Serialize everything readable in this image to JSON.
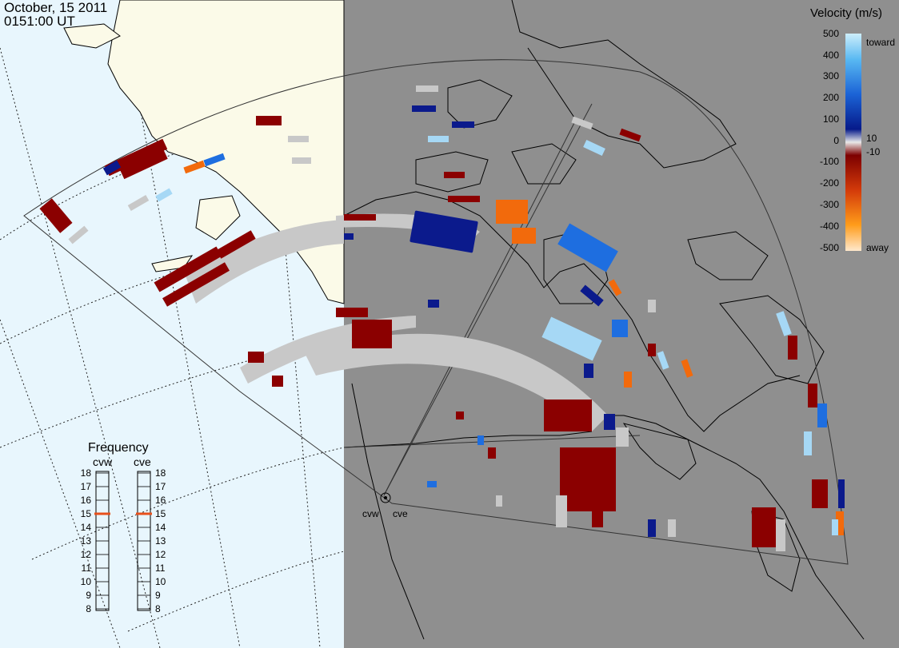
{
  "header": {
    "date": "October, 15 2011",
    "time": "0151:00 UT"
  },
  "radars": [
    {
      "code": "cvw"
    },
    {
      "code": "cve"
    }
  ],
  "velocity_scale": {
    "title": "Velocity (m/s)",
    "ticks": [
      "500",
      "400",
      "300",
      "200",
      "100",
      "10",
      "0",
      "-10",
      "-100",
      "-200",
      "-300",
      "-400",
      "-500"
    ],
    "toward_label": "toward",
    "away_label": "away"
  },
  "frequency_panel": {
    "title": "Frequency",
    "left_label": "cvw",
    "right_label": "cve",
    "levels": [
      "18",
      "17",
      "16",
      "15",
      "14",
      "13",
      "12",
      "11",
      "10",
      "9",
      "8"
    ],
    "cvw_value": 15,
    "cve_value": 15,
    "marker_color": "#e8501c"
  },
  "colors": {
    "ocean": "#e8f6fd",
    "night_side": "#8f8f8f",
    "land": "#fbfae8",
    "ground_scatter": "#c8c8c8",
    "away_strong": "#8b0000",
    "away_orange": "#f26a0c",
    "toward_strong": "#0b1a8c",
    "toward_mid": "#1e6ee0",
    "toward_light": "#a6d8f5"
  }
}
